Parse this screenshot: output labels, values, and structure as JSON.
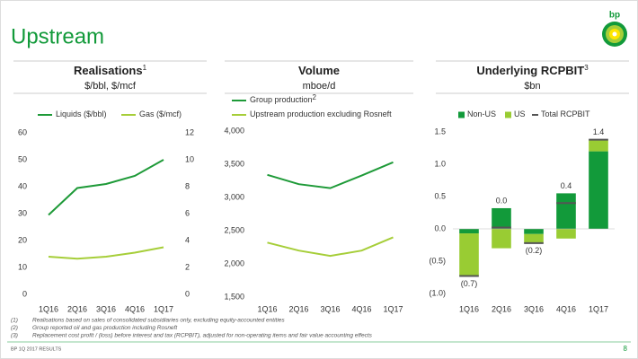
{
  "header": {
    "title": "Upstream",
    "logo": "bp"
  },
  "chart_data": [
    {
      "type": "line",
      "title": "Realisations",
      "title_note": "1",
      "subtitle": "$/bbl, $/mcf",
      "categories": [
        "1Q16",
        "2Q16",
        "3Q16",
        "4Q16",
        "1Q17"
      ],
      "series": [
        {
          "name": "Liquids ($/bbl)",
          "color": "#1e9a38",
          "values": [
            29.5,
            39.5,
            41,
            44,
            50
          ]
        },
        {
          "name": "Gas ($/mcf)",
          "color": "#a6ce39",
          "axis": "y2",
          "values": [
            2.8,
            2.65,
            2.8,
            3.1,
            3.5
          ]
        }
      ],
      "ylim": [
        0,
        60
      ],
      "yticks": [
        0,
        10,
        20,
        30,
        40,
        50,
        60
      ],
      "y2lim": [
        0,
        12
      ],
      "y2ticks": [
        0,
        2,
        4,
        6,
        8,
        10,
        12
      ]
    },
    {
      "type": "line",
      "title": "Volume",
      "subtitle": "mboe/d",
      "categories": [
        "1Q16",
        "2Q16",
        "3Q16",
        "4Q16",
        "1Q17"
      ],
      "series": [
        {
          "name": "Group production",
          "name_note": "2",
          "color": "#1e9a38",
          "values": [
            3340,
            3200,
            3140,
            3330,
            3530
          ]
        },
        {
          "name": "Upstream production excluding Rosneft",
          "color": "#a6ce39",
          "values": [
            2320,
            2200,
            2120,
            2200,
            2400
          ]
        }
      ],
      "ylim": [
        1500,
        4000
      ],
      "yticks": [
        {
          "value": 1500,
          "label": "1,500"
        },
        {
          "value": 2000,
          "label": "2,000"
        },
        {
          "value": 2500,
          "label": "2,500"
        },
        {
          "value": 3000,
          "label": "3,000"
        },
        {
          "value": 3500,
          "label": "3,500"
        },
        {
          "value": 4000,
          "label": "4,000"
        }
      ]
    },
    {
      "type": "stacked_bar",
      "title": "Underlying RCPBIT",
      "title_note": "3",
      "subtitle": "$bn",
      "categories": [
        "1Q16",
        "2Q16",
        "3Q16",
        "4Q16",
        "1Q17"
      ],
      "series": [
        {
          "name": "Non-US",
          "color": "#129a3a",
          "values": [
            -0.07,
            0.32,
            -0.08,
            0.55,
            1.2
          ]
        },
        {
          "name": "US",
          "color": "#99cc33",
          "values": [
            -0.66,
            -0.3,
            -0.14,
            -0.15,
            0.18
          ]
        },
        {
          "name": "Total RCPBIT",
          "color": "#555555",
          "kind": "marker",
          "values": [
            -0.73,
            0.02,
            -0.22,
            0.4,
            1.38
          ],
          "value_labels": [
            "(0.7)",
            "0.0",
            "(0.2)",
            "0.4",
            "1.4"
          ]
        }
      ],
      "ylim": [
        -1.0,
        1.5
      ],
      "yticks": [
        {
          "value": -1.0,
          "label": "(1.0)"
        },
        {
          "value": -0.5,
          "label": "(0.5)"
        },
        {
          "value": 0,
          "label": "0.0"
        },
        {
          "value": 0.5,
          "label": "0.5"
        },
        {
          "value": 1.0,
          "label": "1.0"
        },
        {
          "value": 1.5,
          "label": "1.5"
        }
      ]
    }
  ],
  "footnotes": [
    {
      "mark": "(1)",
      "text": "Realisations based on sales of consolidated subsidiaries only, excluding equity-accounted entities"
    },
    {
      "mark": "(2)",
      "text": "Group reported oil and gas production including Rosneft"
    },
    {
      "mark": "(3)",
      "text": "Replacement cost profit / (loss) before interest and tax (RCPBIT), adjusted for non-operating items and fair value accounting effects"
    }
  ],
  "footer": {
    "left": "BP 1Q 2017 RESULTS",
    "page": "8"
  }
}
